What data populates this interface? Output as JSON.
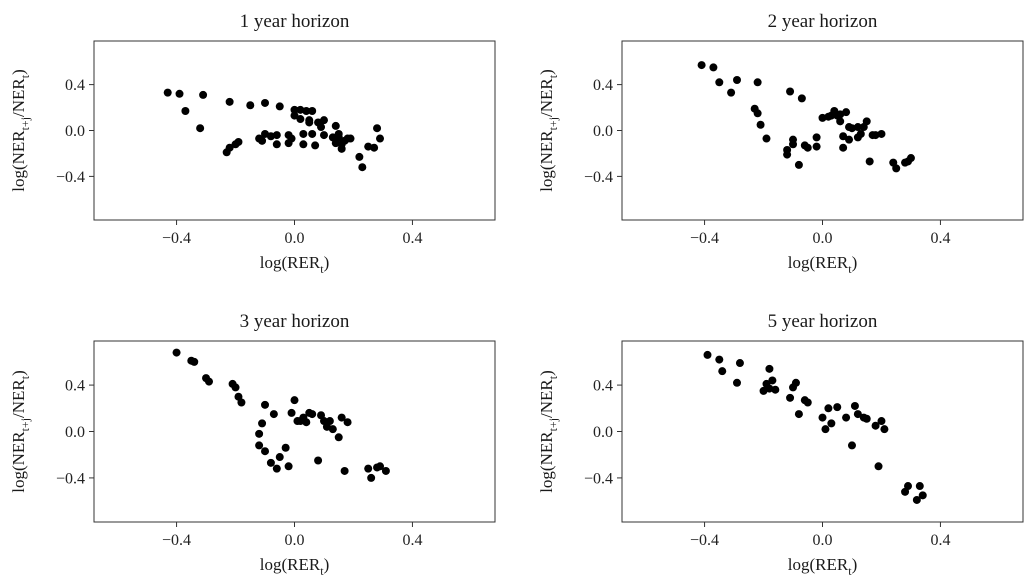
{
  "chart_data": [
    {
      "type": "scatter",
      "title": "1 year horizon",
      "xlabel": {
        "main": "log(RER",
        "sub": "t",
        "close": ")"
      },
      "ylabel": {
        "p1": "log(NER",
        "sub1": "t+j",
        "p2": "/NER",
        "sub2": "t",
        "close": ")"
      },
      "xlim": [
        -0.68,
        0.68
      ],
      "ylim": [
        -0.78,
        0.78
      ],
      "xticks": [
        -0.4,
        0.0,
        0.4
      ],
      "xtick_labels": [
        "−0.4",
        "0.0",
        "0.4"
      ],
      "yticks": [
        -0.4,
        0.0,
        0.4
      ],
      "ytick_labels": [
        "−0.4",
        "0.0",
        "0.4"
      ],
      "grid": false,
      "x": [
        -0.43,
        -0.39,
        -0.37,
        -0.32,
        -0.31,
        -0.22,
        -0.23,
        -0.22,
        -0.2,
        -0.19,
        -0.15,
        -0.12,
        -0.11,
        -0.1,
        -0.1,
        -0.08,
        -0.06,
        -0.06,
        -0.05,
        -0.02,
        -0.02,
        -0.01,
        0.0,
        0.0,
        0.02,
        0.02,
        0.03,
        0.03,
        0.04,
        0.05,
        0.05,
        0.06,
        0.06,
        0.07,
        0.08,
        0.09,
        0.1,
        0.1,
        0.13,
        0.14,
        0.14,
        0.15,
        0.15,
        0.16,
        0.16,
        0.17,
        0.18,
        0.19,
        0.22,
        0.23,
        0.25,
        0.27,
        0.28,
        0.29
      ],
      "y": [
        0.33,
        0.32,
        0.17,
        0.02,
        0.31,
        -0.15,
        -0.19,
        0.25,
        -0.12,
        -0.1,
        0.22,
        -0.07,
        -0.09,
        0.24,
        -0.03,
        -0.05,
        -0.12,
        -0.04,
        0.21,
        -0.04,
        -0.11,
        -0.07,
        0.18,
        0.13,
        0.18,
        0.1,
        -0.12,
        -0.03,
        0.17,
        0.07,
        0.09,
        0.17,
        -0.03,
        -0.13,
        0.07,
        0.03,
        -0.04,
        0.09,
        -0.06,
        0.04,
        -0.11,
        -0.03,
        -0.06,
        -0.12,
        -0.16,
        -0.09,
        -0.07,
        -0.07,
        -0.23,
        -0.32,
        -0.14,
        -0.15,
        0.02,
        -0.07
      ]
    },
    {
      "type": "scatter",
      "title": "2 year horizon",
      "xlabel": {
        "main": "log(RER",
        "sub": "t",
        "close": ")"
      },
      "ylabel": {
        "p1": "log(NER",
        "sub1": "t+j",
        "p2": "/NER",
        "sub2": "t",
        "close": ")"
      },
      "xlim": [
        -0.68,
        0.68
      ],
      "ylim": [
        -0.78,
        0.78
      ],
      "xticks": [
        -0.4,
        0.0,
        0.4
      ],
      "xtick_labels": [
        "−0.4",
        "0.0",
        "0.4"
      ],
      "yticks": [
        -0.4,
        0.0,
        0.4
      ],
      "ytick_labels": [
        "−0.4",
        "0.0",
        "0.4"
      ],
      "grid": false,
      "x": [
        -0.41,
        -0.37,
        -0.35,
        -0.31,
        -0.29,
        -0.23,
        -0.22,
        -0.21,
        -0.22,
        -0.19,
        -0.12,
        -0.12,
        -0.11,
        -0.1,
        -0.1,
        -0.08,
        -0.07,
        -0.06,
        -0.05,
        -0.02,
        -0.02,
        0.0,
        0.02,
        0.03,
        0.04,
        0.05,
        0.06,
        0.06,
        0.07,
        0.07,
        0.08,
        0.09,
        0.09,
        0.1,
        0.12,
        0.12,
        0.13,
        0.14,
        0.15,
        0.16,
        0.17,
        0.18,
        0.2,
        0.24,
        0.25,
        0.28,
        0.29,
        0.3
      ],
      "y": [
        0.57,
        0.55,
        0.42,
        0.33,
        0.44,
        0.19,
        0.15,
        0.05,
        0.42,
        -0.07,
        -0.17,
        -0.21,
        0.34,
        -0.08,
        -0.12,
        -0.3,
        0.28,
        -0.13,
        -0.15,
        -0.06,
        -0.14,
        0.11,
        0.12,
        0.13,
        0.17,
        0.13,
        0.14,
        0.08,
        -0.05,
        -0.15,
        0.16,
        0.03,
        -0.08,
        0.02,
        0.03,
        -0.06,
        -0.03,
        0.03,
        0.08,
        -0.27,
        -0.04,
        -0.04,
        -0.03,
        -0.28,
        -0.33,
        -0.28,
        -0.27,
        -0.24
      ]
    },
    {
      "type": "scatter",
      "title": "3 year horizon",
      "xlabel": {
        "main": "log(RER",
        "sub": "t",
        "close": ")"
      },
      "ylabel": {
        "p1": "log(NER",
        "sub1": "t+j",
        "p2": "/NER",
        "sub2": "t",
        "close": ")"
      },
      "xlim": [
        -0.68,
        0.68
      ],
      "ylim": [
        -0.78,
        0.78
      ],
      "xticks": [
        -0.4,
        0.0,
        0.4
      ],
      "xtick_labels": [
        "−0.4",
        "0.0",
        "0.4"
      ],
      "yticks": [
        -0.4,
        0.0,
        0.4
      ],
      "ytick_labels": [
        "−0.4",
        "0.0",
        "0.4"
      ],
      "grid": false,
      "x": [
        -0.4,
        -0.35,
        -0.34,
        -0.3,
        -0.29,
        -0.21,
        -0.2,
        -0.19,
        -0.18,
        -0.12,
        -0.12,
        -0.11,
        -0.1,
        -0.1,
        -0.08,
        -0.07,
        -0.06,
        -0.05,
        -0.03,
        -0.02,
        -0.01,
        0.0,
        0.01,
        0.02,
        0.03,
        0.04,
        0.05,
        0.06,
        0.08,
        0.09,
        0.1,
        0.11,
        0.12,
        0.13,
        0.15,
        0.16,
        0.17,
        0.18,
        0.25,
        0.26,
        0.28,
        0.29,
        0.31
      ],
      "y": [
        0.68,
        0.61,
        0.6,
        0.46,
        0.43,
        0.41,
        0.38,
        0.3,
        0.25,
        -0.02,
        -0.12,
        0.07,
        0.23,
        -0.17,
        -0.27,
        0.15,
        -0.32,
        -0.22,
        -0.14,
        -0.3,
        0.16,
        0.27,
        0.09,
        0.09,
        0.12,
        0.08,
        0.16,
        0.15,
        -0.25,
        0.14,
        0.09,
        0.04,
        0.09,
        0.02,
        -0.05,
        0.12,
        -0.34,
        0.08,
        -0.32,
        -0.4,
        -0.31,
        -0.3,
        -0.34
      ]
    },
    {
      "type": "scatter",
      "title": "5 year horizon",
      "xlabel": {
        "main": "log(RER",
        "sub": "t",
        "close": ")"
      },
      "ylabel": {
        "p1": "log(NER",
        "sub1": "t+j",
        "p2": "/NER",
        "sub2": "t",
        "close": ")"
      },
      "xlim": [
        -0.68,
        0.68
      ],
      "ylim": [
        -0.78,
        0.78
      ],
      "xticks": [
        -0.4,
        0.0,
        0.4
      ],
      "xtick_labels": [
        "−0.4",
        "0.0",
        "0.4"
      ],
      "yticks": [
        -0.4,
        0.0,
        0.4
      ],
      "ytick_labels": [
        "−0.4",
        "0.0",
        "0.4"
      ],
      "grid": false,
      "x": [
        -0.39,
        -0.35,
        -0.34,
        -0.29,
        -0.28,
        -0.2,
        -0.19,
        -0.18,
        -0.18,
        -0.17,
        -0.16,
        -0.11,
        -0.1,
        -0.09,
        -0.08,
        -0.06,
        -0.05,
        0.0,
        0.01,
        0.02,
        0.03,
        0.05,
        0.08,
        0.1,
        0.11,
        0.12,
        0.14,
        0.15,
        0.18,
        0.19,
        0.2,
        0.21,
        0.28,
        0.29,
        0.32,
        0.33,
        0.34
      ],
      "y": [
        0.66,
        0.62,
        0.52,
        0.42,
        0.59,
        0.35,
        0.41,
        0.54,
        0.37,
        0.44,
        0.36,
        0.29,
        0.38,
        0.42,
        0.15,
        0.27,
        0.25,
        0.12,
        0.02,
        0.2,
        0.07,
        0.21,
        0.12,
        -0.12,
        0.22,
        0.15,
        0.12,
        0.11,
        0.05,
        -0.3,
        0.09,
        0.02,
        -0.52,
        -0.47,
        -0.59,
        -0.47,
        -0.55
      ]
    }
  ]
}
